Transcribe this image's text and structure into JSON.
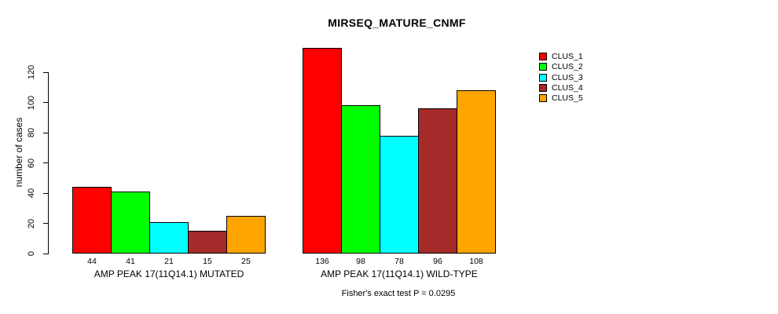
{
  "chart_data": {
    "type": "bar",
    "title": "MIRSEQ_MATURE_CNMF",
    "ylabel": "number of cases",
    "xlabel": "",
    "categories": [
      "AMP PEAK 17(11Q14.1) MUTATED",
      "AMP PEAK 17(11Q14.1) WILD-TYPE"
    ],
    "series": [
      {
        "name": "CLUS_1",
        "values": [
          44,
          136
        ]
      },
      {
        "name": "CLUS_2",
        "values": [
          41,
          98
        ]
      },
      {
        "name": "CLUS_3",
        "values": [
          21,
          78
        ]
      },
      {
        "name": "CLUS_4",
        "values": [
          15,
          96
        ]
      },
      {
        "name": "CLUS_5",
        "values": [
          25,
          108
        ]
      }
    ],
    "colors": [
      "#FF0000",
      "#00FF00",
      "#00FFFF",
      "#A52A2A",
      "#FFA500"
    ],
    "yticks": [
      0,
      20,
      40,
      60,
      80,
      100,
      120
    ],
    "ylim": [
      0,
      136
    ],
    "bar_value_labels_shown": true,
    "grid": false,
    "legend": {
      "position": "top-right",
      "entries": [
        "CLUS_1",
        "CLUS_2",
        "CLUS_3",
        "CLUS_4",
        "CLUS_5"
      ]
    },
    "annotation": "Fisher's exact test P = 0.0295"
  }
}
